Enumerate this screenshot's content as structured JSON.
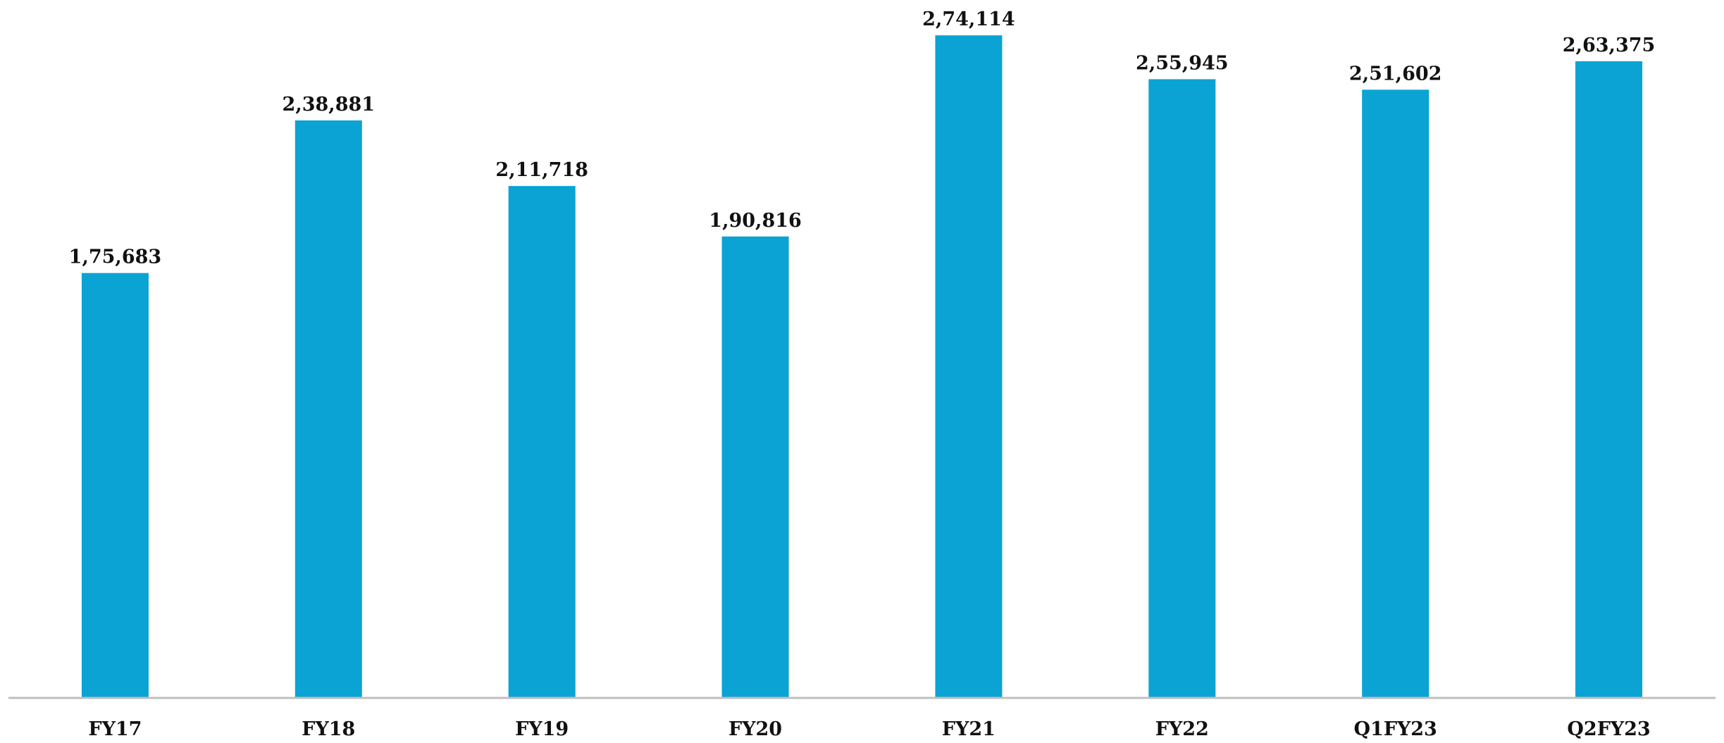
{
  "chart_data": {
    "type": "bar",
    "categories": [
      "FY17",
      "FY18",
      "FY19",
      "FY20",
      "FY21",
      "FY22",
      "Q1FY23",
      "Q2FY23"
    ],
    "values": [
      175683,
      238881,
      211718,
      190816,
      274114,
      255945,
      251602,
      263375
    ],
    "value_labels": [
      "1,75,683",
      "2,38,881",
      "2,11,718",
      "1,90,816",
      "2,74,114",
      "2,55,945",
      "2,51,602",
      "2,63,375"
    ],
    "color": "#0aa3d4",
    "ylim": [
      0,
      280000
    ]
  }
}
